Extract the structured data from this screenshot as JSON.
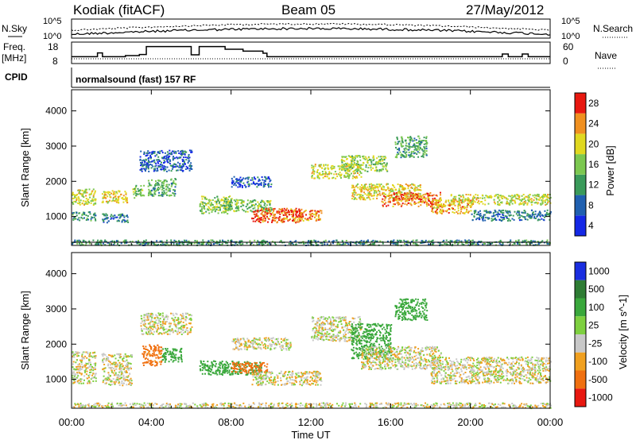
{
  "header": {
    "radar": "Kodiak (fitACF)",
    "beam": "Beam 05",
    "date": "27/May/2012"
  },
  "noise_panel": {
    "left_label": "N.Sky",
    "right_label": "N.Search",
    "ticks_top": "10^5",
    "ticks_bottom": "10^0"
  },
  "freq_panel": {
    "left_label_1": "Freq.",
    "left_label_2": "[MHz]",
    "right_label": "Nave",
    "left_ticks": [
      "18",
      "8"
    ],
    "right_ticks": [
      "60",
      "0"
    ],
    "freq_steps": [
      [
        0,
        10.8
      ],
      [
        1.3,
        13.2
      ],
      [
        1.55,
        10.8
      ],
      [
        2.7,
        11.5
      ],
      [
        3.4,
        12.2
      ],
      [
        3.75,
        17.2
      ],
      [
        6.0,
        12.0
      ],
      [
        6.4,
        17.2
      ],
      [
        7.7,
        15.5
      ],
      [
        8.6,
        14.3
      ],
      [
        9.6,
        13.0
      ],
      [
        9.8,
        10.8
      ],
      [
        21.6,
        12.5
      ],
      [
        21.9,
        10.8
      ],
      [
        22.6,
        12.5
      ],
      [
        22.9,
        10.8
      ],
      [
        24,
        10.8
      ]
    ]
  },
  "cpid_panel": {
    "label": "CPID",
    "text": "normalsound (fast) 157 RF"
  },
  "x_axis": {
    "label": "Time UT",
    "ticks": [
      "00:00",
      "04:00",
      "08:00",
      "12:00",
      "16:00",
      "20:00",
      "00:00"
    ],
    "range_hours": [
      0,
      24
    ]
  },
  "chart_data": [
    {
      "type": "heatmap",
      "name": "power",
      "ylabel": "Slant Range [km]",
      "y_ticks": [
        "1000",
        "2000",
        "3000",
        "4000"
      ],
      "ylim": [
        180,
        4600
      ],
      "colorbar_label": "Power [dB]",
      "colorbar_ticks": [
        "4",
        "8",
        "12",
        "16",
        "20",
        "24",
        "28"
      ],
      "colors": [
        "#1428e6",
        "#2060b0",
        "#3a9a5a",
        "#7cc850",
        "#e0d820",
        "#f09020",
        "#e81810"
      ],
      "scatter_bands": [
        {
          "x": [
            0,
            1.2
          ],
          "y": [
            1350,
            1800
          ],
          "value": 18
        },
        {
          "x": [
            0,
            1.2
          ],
          "y": [
            900,
            1150
          ],
          "value": 10
        },
        {
          "x": [
            1.5,
            2.8
          ],
          "y": [
            1400,
            1750
          ],
          "value": 20
        },
        {
          "x": [
            1.5,
            2.8
          ],
          "y": [
            850,
            1100
          ],
          "value": 8
        },
        {
          "x": [
            3.0,
            3.6
          ],
          "y": [
            1550,
            1900
          ],
          "value": 14
        },
        {
          "x": [
            3.4,
            6.0
          ],
          "y": [
            2300,
            2900
          ],
          "value": 6
        },
        {
          "x": [
            3.8,
            5.2
          ],
          "y": [
            1600,
            2100
          ],
          "value": 12
        },
        {
          "x": [
            6.4,
            8.0
          ],
          "y": [
            1100,
            1600
          ],
          "value": 16
        },
        {
          "x": [
            7.5,
            10.0
          ],
          "y": [
            1150,
            1500
          ],
          "value": 14
        },
        {
          "x": [
            8.0,
            10.0
          ],
          "y": [
            1850,
            2150
          ],
          "value": 6
        },
        {
          "x": [
            9.0,
            11.5
          ],
          "y": [
            850,
            1250
          ],
          "value": 26
        },
        {
          "x": [
            10.5,
            12.5
          ],
          "y": [
            900,
            1200
          ],
          "value": 24
        },
        {
          "x": [
            12.0,
            14.5
          ],
          "y": [
            2100,
            2500
          ],
          "value": 18
        },
        {
          "x": [
            13.5,
            15.8
          ],
          "y": [
            2300,
            2750
          ],
          "value": 16
        },
        {
          "x": [
            14.0,
            17.5
          ],
          "y": [
            1500,
            1950
          ],
          "value": 20
        },
        {
          "x": [
            15.5,
            18.5
          ],
          "y": [
            1300,
            1700
          ],
          "value": 24
        },
        {
          "x": [
            16.2,
            17.8
          ],
          "y": [
            2700,
            3300
          ],
          "value": 12
        },
        {
          "x": [
            18.0,
            20.0
          ],
          "y": [
            1100,
            1500
          ],
          "value": 22
        },
        {
          "x": [
            19.0,
            24.0
          ],
          "y": [
            1350,
            1650
          ],
          "value": 18
        },
        {
          "x": [
            20.0,
            24.0
          ],
          "y": [
            900,
            1200
          ],
          "value": 8
        },
        {
          "x": [
            0,
            24.0
          ],
          "y": [
            200,
            350
          ],
          "value": 10
        }
      ]
    },
    {
      "type": "heatmap",
      "name": "velocity",
      "ylabel": "Slant Range [km]",
      "y_ticks": [
        "1000",
        "2000",
        "3000",
        "4000"
      ],
      "ylim": [
        180,
        4600
      ],
      "colorbar_label": "Velocity [m s^-1]",
      "colorbar_ticks": [
        "1000",
        "500",
        "100",
        "25",
        "-25",
        "-100",
        "-500",
        "-1000"
      ],
      "colors": [
        "#1a2ee0",
        "#2e7c34",
        "#3aa83c",
        "#7ed040",
        "#c8c8c8",
        "#f0a020",
        "#f07010",
        "#e81810"
      ],
      "scatter_bands": [
        {
          "x": [
            0,
            1.2
          ],
          "y": [
            900,
            1800
          ],
          "value": 0
        },
        {
          "x": [
            1.5,
            3.0
          ],
          "y": [
            850,
            1750
          ],
          "value": 0
        },
        {
          "x": [
            3.4,
            6.0
          ],
          "y": [
            2300,
            2900
          ],
          "value": 0
        },
        {
          "x": [
            3.5,
            4.5
          ],
          "y": [
            1400,
            2000
          ],
          "value": -150
        },
        {
          "x": [
            4.5,
            5.5
          ],
          "y": [
            1500,
            1900
          ],
          "value": 150
        },
        {
          "x": [
            6.4,
            9.5
          ],
          "y": [
            1150,
            1550
          ],
          "value": 120
        },
        {
          "x": [
            8.0,
            9.8
          ],
          "y": [
            1200,
            1500
          ],
          "value": -200
        },
        {
          "x": [
            9.0,
            12.5
          ],
          "y": [
            850,
            1250
          ],
          "value": 0
        },
        {
          "x": [
            8.0,
            11.0
          ],
          "y": [
            1850,
            2200
          ],
          "value": 0
        },
        {
          "x": [
            12.0,
            14.5
          ],
          "y": [
            2100,
            2800
          ],
          "value": 0
        },
        {
          "x": [
            14.0,
            16.0
          ],
          "y": [
            1600,
            2600
          ],
          "value": 150
        },
        {
          "x": [
            14.5,
            18.5
          ],
          "y": [
            1300,
            1950
          ],
          "value": 0
        },
        {
          "x": [
            16.2,
            17.8
          ],
          "y": [
            2700,
            3300
          ],
          "value": 150
        },
        {
          "x": [
            18.0,
            24.0
          ],
          "y": [
            900,
            1650
          ],
          "value": 0
        },
        {
          "x": [
            0,
            24.0
          ],
          "y": [
            200,
            350
          ],
          "value": 0
        }
      ]
    }
  ]
}
